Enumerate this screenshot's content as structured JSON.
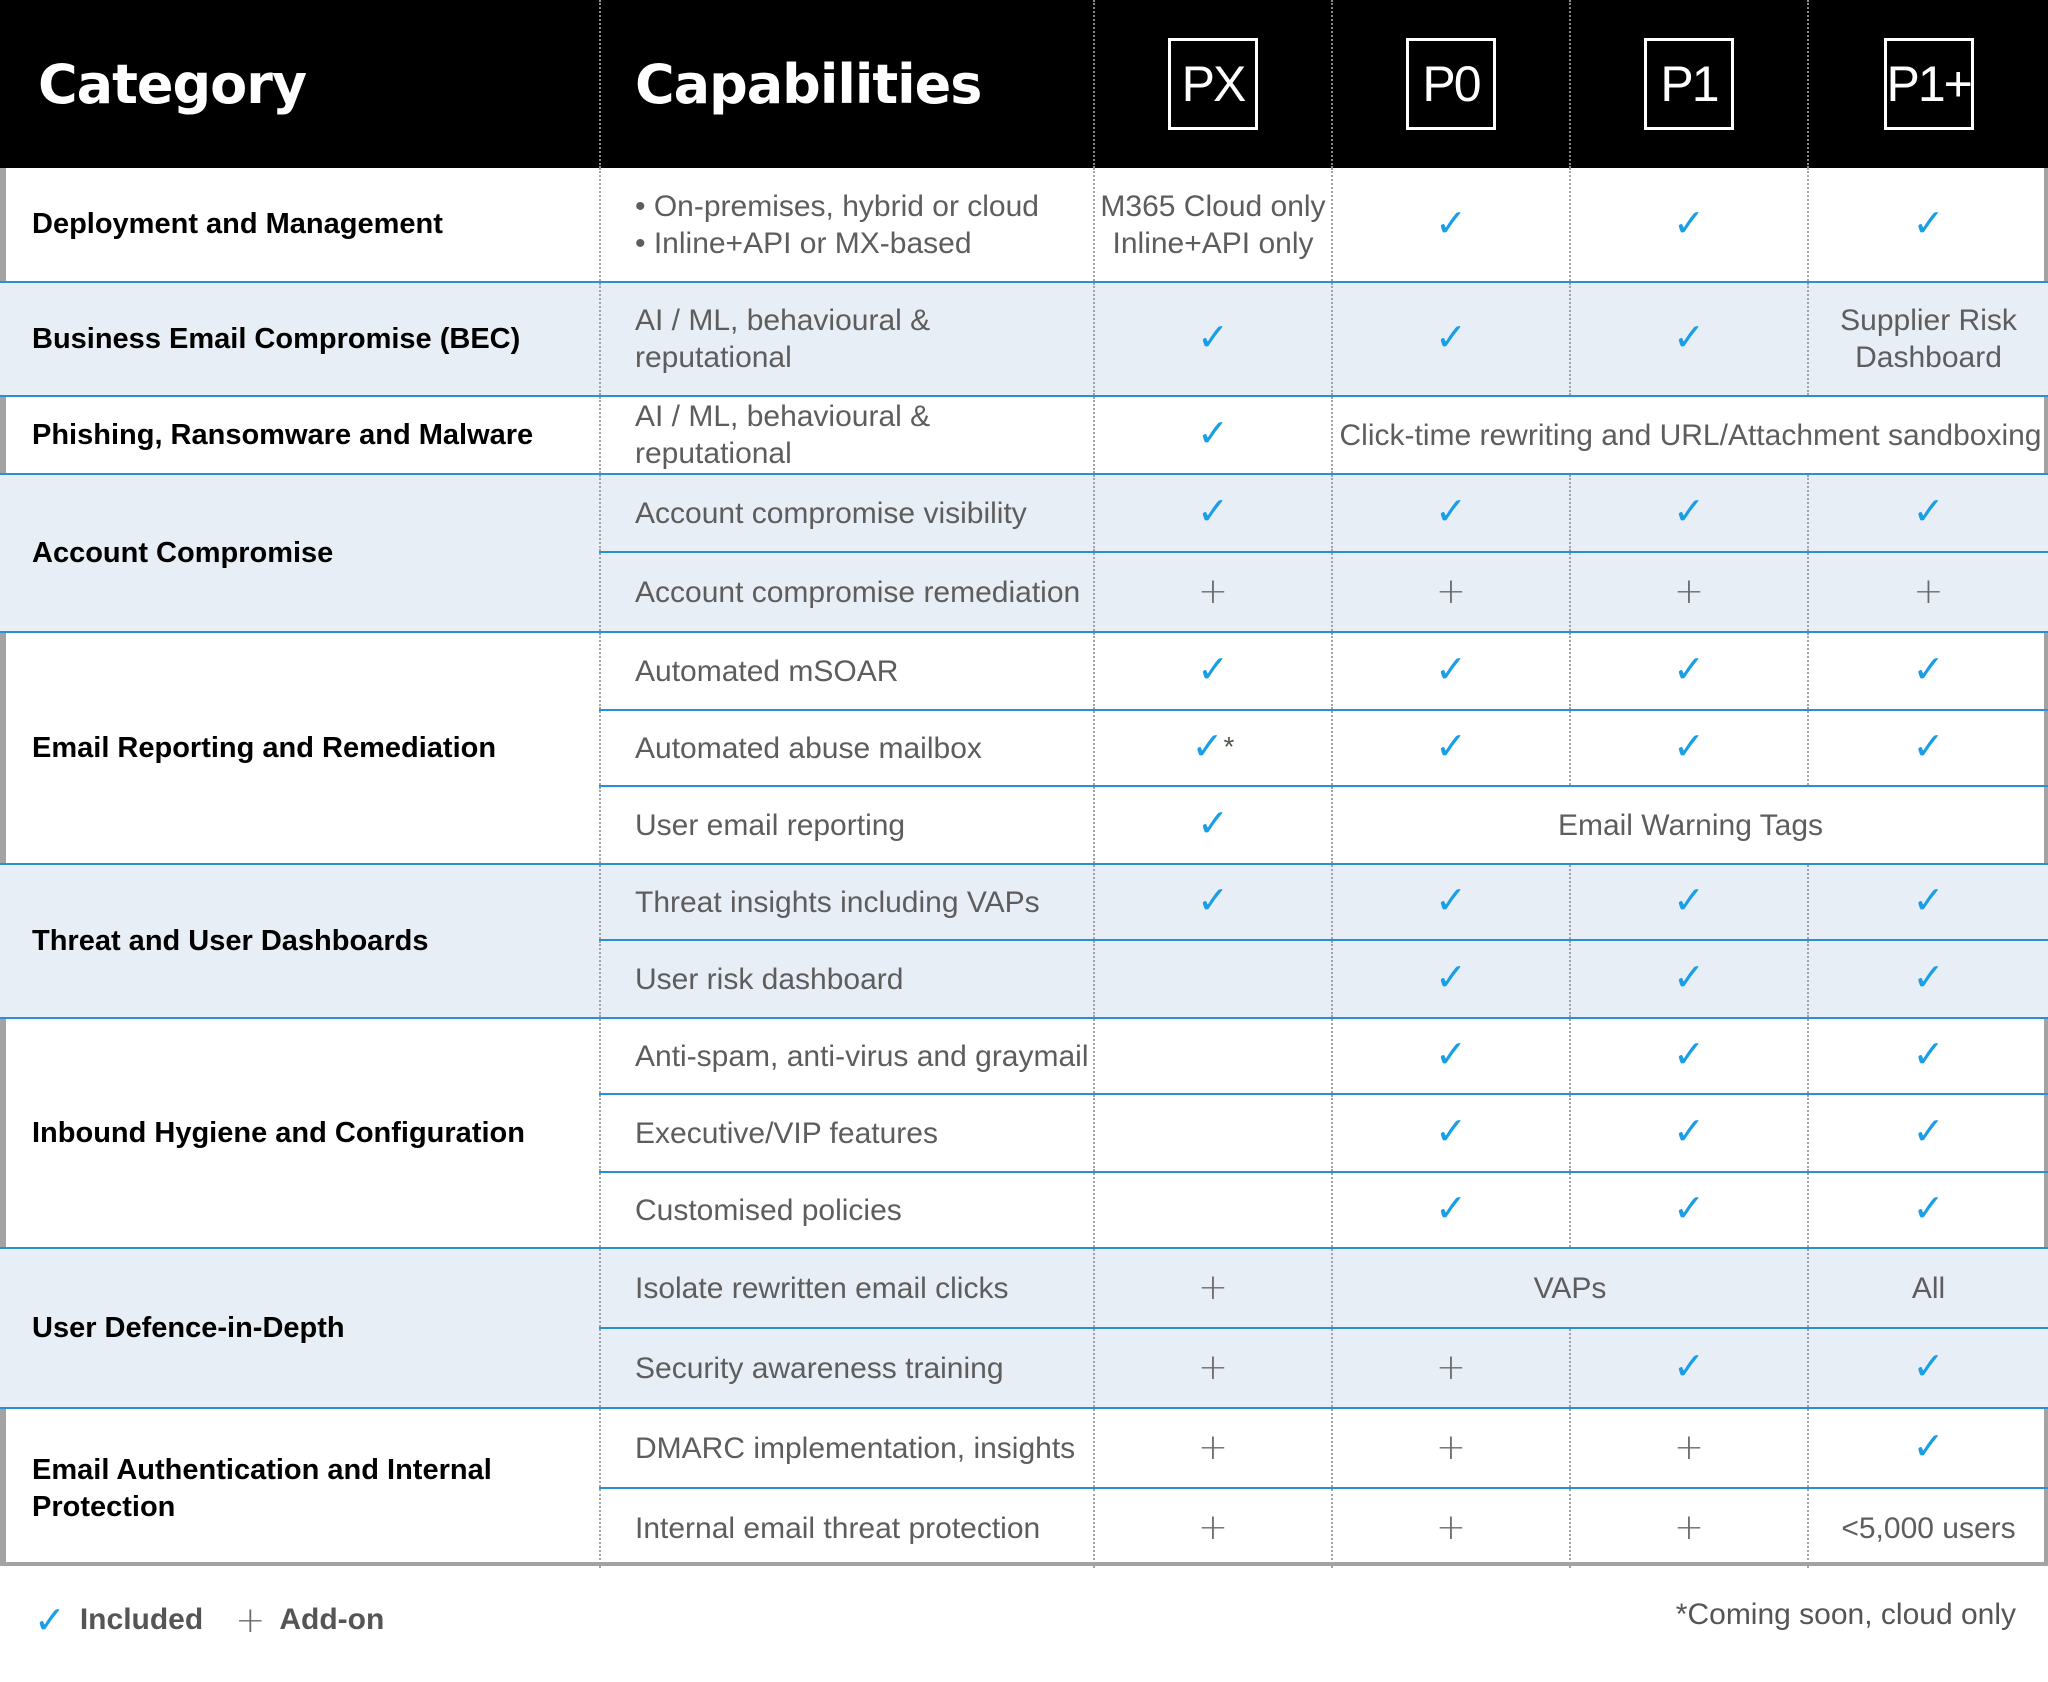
{
  "header": {
    "category": "Category",
    "capabilities": "Capabilities",
    "plans": [
      "PX",
      "P0",
      "P1",
      "P1+"
    ]
  },
  "symbols": {
    "check": "✓",
    "plus": "+"
  },
  "colors": {
    "header_bg": "#000000",
    "band_bg": "#e8eef5",
    "check": "#1a9ee6",
    "rule": "#2a8fd6"
  },
  "rows": {
    "deploy": {
      "category": "Deployment and Management",
      "capability_1": "• On-premises, hybrid or cloud",
      "capability_2": "• Inline+API or MX-based",
      "px_1": "M365 Cloud only",
      "px_2": "Inline+API only"
    },
    "bec": {
      "category": "Business Email Compromise (BEC)",
      "capability": "AI / ML, behavioural & reputational",
      "p1plus_1": "Supplier Risk",
      "p1plus_2": "Dashboard"
    },
    "phish": {
      "category": "Phishing, Ransomware and Malware",
      "capability": "AI / ML, behavioural & reputational",
      "span": "Click-time rewriting and URL/Attachment sandboxing"
    },
    "account": {
      "category": "Account Compromise",
      "visibility": "Account compromise visibility",
      "remediation": "Account compromise remediation"
    },
    "reporting": {
      "category": "Email Reporting and Remediation",
      "msoar": "Automated mSOAR",
      "abuse": "Automated abuse mailbox",
      "abuse_mark": "*",
      "user": "User email reporting",
      "span": "Email Warning Tags"
    },
    "dashboards": {
      "category": "Threat and User Dashboards",
      "threat": "Threat insights including VAPs",
      "risk": "User risk dashboard"
    },
    "hygiene": {
      "category": "Inbound Hygiene and Configuration",
      "spam": "Anti-spam, anti-virus and graymail",
      "vip": "Executive/VIP features",
      "policies": "Customised policies"
    },
    "defence": {
      "category": "User Defence-in-Depth",
      "isolate": "Isolate rewritten email clicks",
      "isolate_span": "VAPs",
      "isolate_p1plus": "All",
      "training": "Security awareness training"
    },
    "auth": {
      "category": "Email Authentication and Internal Protection",
      "dmarc": "DMARC implementation, insights",
      "internal": "Internal email threat protection",
      "internal_p1plus": "<5,000 users"
    }
  },
  "legend": {
    "included": "Included",
    "addon": "Add-on"
  },
  "footnote": "*Coming soon, cloud only"
}
